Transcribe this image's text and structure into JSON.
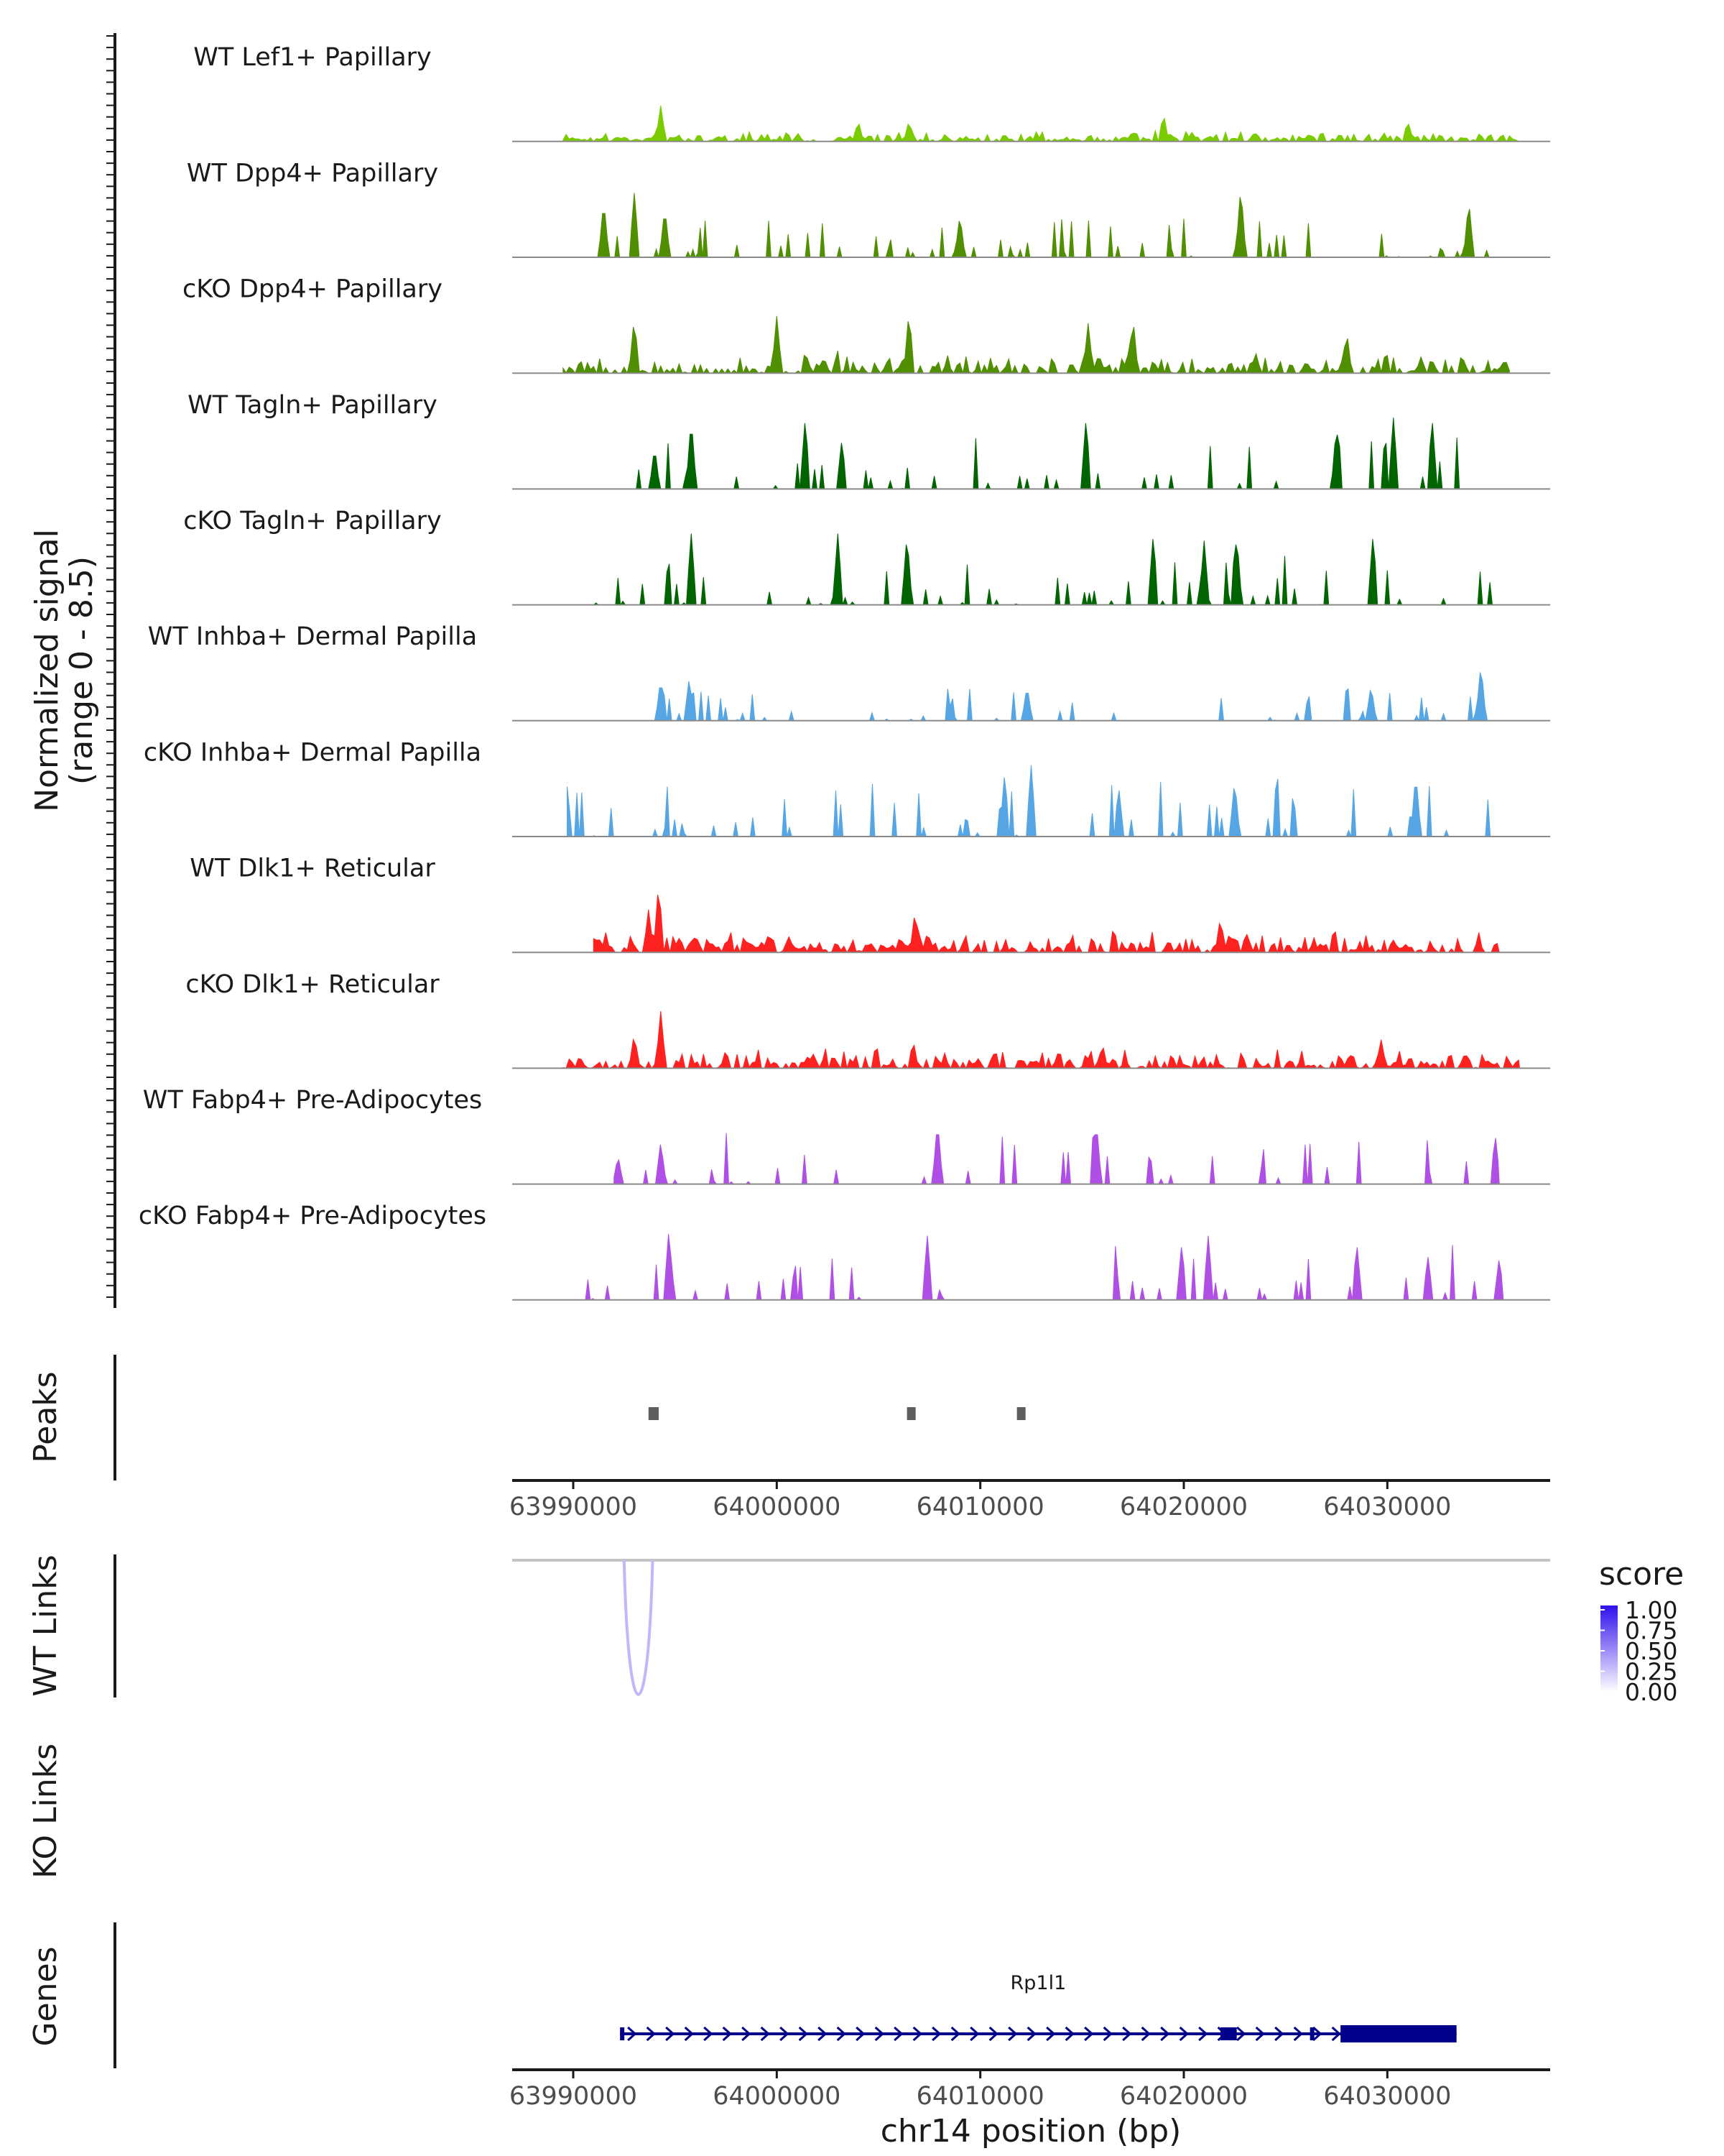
{
  "chart_data": {
    "type": "genome-coverage",
    "region": {
      "chrom": "chr14",
      "start": 63987000,
      "end": 64038000
    },
    "coverage": {
      "ylabel_line1": "Normalized signal",
      "ylabel_line2": "(range 0 - 8.5)",
      "range": [
        0,
        8.5
      ],
      "tracks": [
        {
          "label": "WT Lef1+ Papillary",
          "color": "#7acc00",
          "style": "dense",
          "seed": 11,
          "start": 63989500,
          "end": 64036500,
          "height": 0.12,
          "peaks": [
            [
              63994300,
              0.5
            ],
            [
              64004000,
              0.3
            ],
            [
              64006500,
              0.3
            ],
            [
              64019000,
              0.4
            ],
            [
              64031000,
              0.3
            ]
          ]
        },
        {
          "label": "WT Dpp4+ Papillary",
          "color": "#4f8f00",
          "style": "sparse",
          "seed": 23,
          "start": 63990000,
          "end": 64035500,
          "height": 0.3,
          "peaks": [
            [
              63991500,
              0.8
            ],
            [
              63993000,
              0.9
            ],
            [
              63994500,
              0.7
            ],
            [
              64022800,
              1.0
            ],
            [
              64034000,
              0.8
            ],
            [
              64009000,
              0.6
            ]
          ]
        },
        {
          "label": "cKO Dpp4+ Papillary",
          "color": "#4f8f00",
          "style": "dense",
          "seed": 37,
          "start": 63989500,
          "end": 64036000,
          "height": 0.25,
          "peaks": [
            [
              63993000,
              0.8
            ],
            [
              64000000,
              0.8
            ],
            [
              64006500,
              0.9
            ],
            [
              64015300,
              0.7
            ],
            [
              64017500,
              0.8
            ],
            [
              64028000,
              0.6
            ]
          ]
        },
        {
          "label": "WT Tagln+ Papillary",
          "color": "#006400",
          "style": "sparse",
          "seed": 41,
          "start": 63992500,
          "end": 64034500,
          "height": 0.4,
          "peaks": [
            [
              63994000,
              0.6
            ],
            [
              63995800,
              1.0
            ],
            [
              64001400,
              1.0
            ],
            [
              64003200,
              0.7
            ],
            [
              64015200,
              1.0
            ],
            [
              64030300,
              1.0
            ],
            [
              64032200,
              1.0
            ],
            [
              64027500,
              0.9
            ]
          ]
        },
        {
          "label": "cKO Tagln+ Papillary",
          "color": "#006400",
          "style": "sparse",
          "seed": 53,
          "start": 63991000,
          "end": 64035500,
          "height": 0.4,
          "peaks": [
            [
              63995800,
              1.0
            ],
            [
              64003000,
              1.0
            ],
            [
              64006400,
              1.0
            ],
            [
              64018500,
              1.0
            ],
            [
              64022600,
              1.0
            ],
            [
              64029300,
              1.0
            ],
            [
              64021000,
              0.9
            ]
          ]
        },
        {
          "label": "WT Inhba+ Dermal Papilla",
          "color": "#56a6e5",
          "style": "sparse",
          "seed": 67,
          "start": 63994000,
          "end": 64035000,
          "height": 0.25,
          "peaks": [
            [
              63994300,
              0.6
            ],
            [
              63995700,
              0.6
            ],
            [
              64012300,
              0.5
            ],
            [
              64034600,
              0.8
            ],
            [
              64029200,
              0.5
            ]
          ]
        },
        {
          "label": "cKO Inhba+ Dermal Papilla",
          "color": "#56a6e5",
          "style": "sparse",
          "seed": 79,
          "start": 63989700,
          "end": 64035300,
          "height": 0.45,
          "peaks": [
            [
              63989700,
              0.7
            ],
            [
              64011200,
              0.9
            ],
            [
              64012500,
              1.0
            ],
            [
              64022500,
              0.8
            ],
            [
              64031400,
              0.9
            ],
            [
              64016800,
              0.7
            ]
          ]
        },
        {
          "label": "WT Dlk1+ Reticular",
          "color": "#ff2020",
          "style": "dense",
          "seed": 83,
          "start": 63991000,
          "end": 64035500,
          "height": 0.25,
          "peaks": [
            [
              63994200,
              1.0
            ],
            [
              63993700,
              0.6
            ],
            [
              64006800,
              0.6
            ],
            [
              64021800,
              0.5
            ]
          ]
        },
        {
          "label": "cKO Dlk1+ Reticular",
          "color": "#ff2020",
          "style": "dense",
          "seed": 97,
          "start": 63989500,
          "end": 64036500,
          "height": 0.22,
          "peaks": [
            [
              63993000,
              0.5
            ],
            [
              63994300,
              0.8
            ],
            [
              64006700,
              0.4
            ],
            [
              64016000,
              0.35
            ],
            [
              64029700,
              0.4
            ]
          ]
        },
        {
          "label": "WT Fabp4+ Pre-Adipocytes",
          "color": "#b04fe6",
          "style": "sparse",
          "seed": 101,
          "start": 63992000,
          "end": 64035500,
          "height": 0.4,
          "peaks": [
            [
              63994300,
              0.6
            ],
            [
              64007900,
              0.9
            ],
            [
              64015700,
              0.9
            ],
            [
              64035300,
              0.7
            ],
            [
              63992200,
              0.4
            ]
          ]
        },
        {
          "label": "cKO Fabp4+ Pre-Adipocytes",
          "color": "#b04fe6",
          "style": "sparse",
          "seed": 113,
          "start": 63990000,
          "end": 64035700,
          "height": 0.45,
          "peaks": [
            [
              63994700,
              1.0
            ],
            [
              64007400,
              0.9
            ],
            [
              64019900,
              0.8
            ],
            [
              64021200,
              0.9
            ],
            [
              64028500,
              0.8
            ],
            [
              64032000,
              0.6
            ],
            [
              64035500,
              0.6
            ]
          ]
        }
      ]
    },
    "peaks_track": {
      "label": "Peaks",
      "color": "#5e5e5e",
      "regions": [
        [
          63993700,
          63994200
        ],
        [
          64006400,
          64006800
        ],
        [
          64011800,
          64012200
        ]
      ]
    },
    "x_axis": {
      "ticks": [
        63990000,
        64000000,
        64010000,
        64020000,
        64030000
      ],
      "tick_labels": [
        "63990000",
        "64000000",
        "64010000",
        "64020000",
        "64030000"
      ],
      "title": "chr14 position (bp)"
    },
    "wt_links": {
      "label": "WT Links",
      "links": [
        {
          "start": 63992500,
          "end": 63993900,
          "score": 0.3
        }
      ]
    },
    "ko_links": {
      "label": "KO Links",
      "links": []
    },
    "score_legend": {
      "title": "score",
      "breaks": [
        "1.00",
        "0.75",
        "0.50",
        "0.25",
        "0.00"
      ],
      "low_color": "#ffffff",
      "high_color": "#3010ee"
    },
    "genes": {
      "label": "Genes",
      "items": [
        {
          "name": "Rp1l1",
          "strand": "+",
          "start": 63992300,
          "end": 64033400,
          "color": "#00008b",
          "exons": [
            [
              63992300,
              63992500,
              "utr"
            ],
            [
              64021800,
              64022600,
              "utr"
            ],
            [
              64026200,
              64026400,
              "utr"
            ],
            [
              64027700,
              64033400,
              "cds"
            ]
          ]
        }
      ]
    }
  }
}
